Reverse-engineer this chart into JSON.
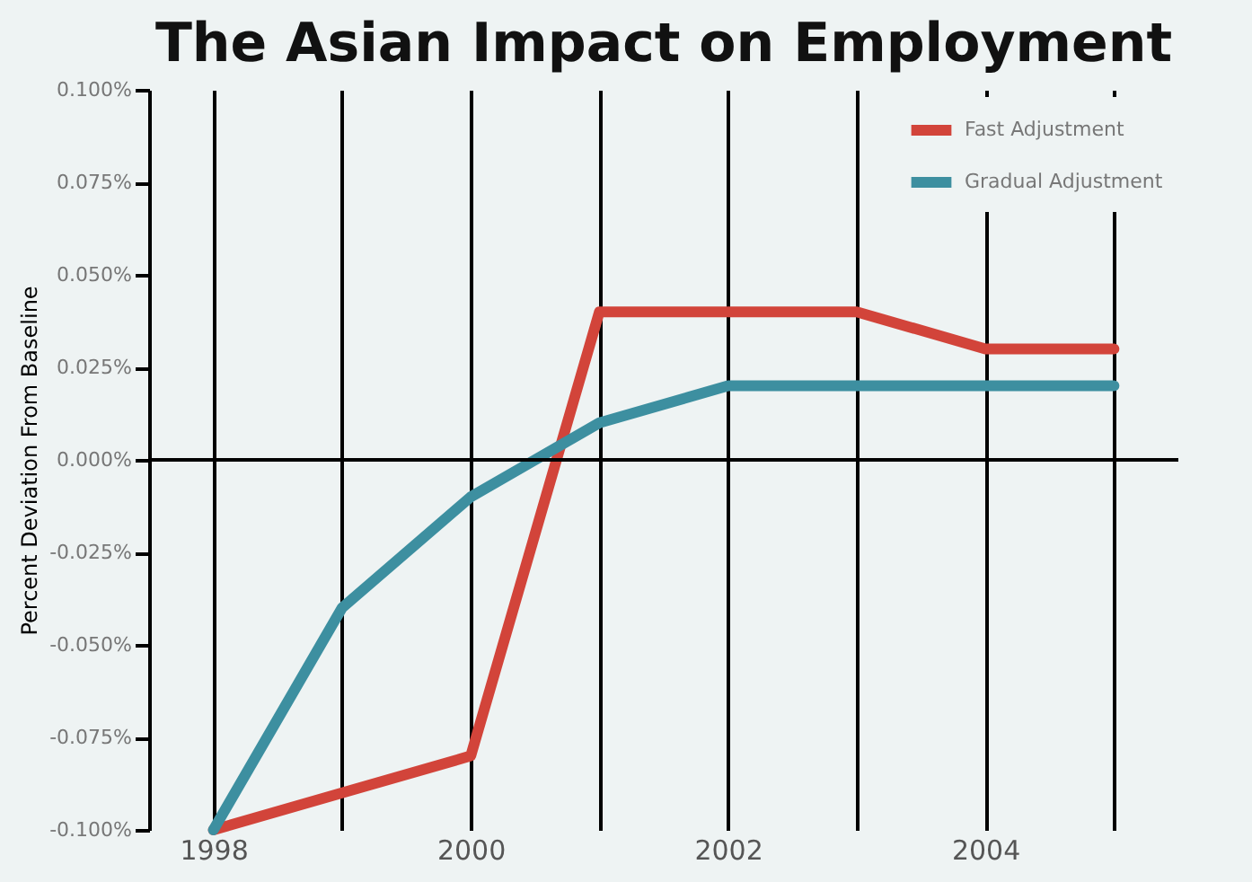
{
  "chart_data": {
    "type": "line",
    "title": "The Asian Impact on Employment",
    "ylabel": "Percent Deviation From Baseline",
    "x": [
      1998,
      1999,
      2000,
      2001,
      2002,
      2003,
      2004,
      2005
    ],
    "series": [
      {
        "name": "Fast Adjustment",
        "color": "#d2443a",
        "values": [
          -0.1,
          -0.09,
          -0.08,
          0.04,
          0.04,
          0.04,
          0.03,
          0.03
        ]
      },
      {
        "name": "Gradual Adjustment",
        "color": "#3d8fa0",
        "values": [
          -0.1,
          -0.04,
          -0.01,
          0.01,
          0.02,
          0.02,
          0.02,
          0.02
        ]
      }
    ],
    "xlim": [
      1997.5,
      2005.5
    ],
    "xticks": [
      1998,
      {
        "value": 1999,
        "label": null
      },
      2000,
      {
        "value": 2001,
        "label": null
      },
      2002,
      {
        "value": 2003,
        "label": null
      },
      2004,
      {
        "value": 2005,
        "label": null
      }
    ],
    "ylim": [
      -0.1,
      0.1
    ],
    "yticks": [
      {
        "value": -0.1,
        "label": "-0.100%"
      },
      {
        "value": -0.075,
        "label": "-0.075%"
      },
      {
        "value": -0.05,
        "label": "-0.050%"
      },
      {
        "value": -0.025,
        "label": "-0.025%"
      },
      {
        "value": 0,
        "label": "0.000%"
      },
      {
        "value": 0.025,
        "label": "0.025%"
      },
      {
        "value": 0.05,
        "label": "0.050%"
      },
      {
        "value": 0.075,
        "label": "0.075%"
      },
      {
        "value": 0.1,
        "label": "0.100%"
      }
    ],
    "ref_lines": [
      {
        "axis": "y",
        "value": 0,
        "color": "#000000"
      }
    ],
    "grid": "x",
    "legend": "top right",
    "marker": "none",
    "line_style": "solid"
  }
}
